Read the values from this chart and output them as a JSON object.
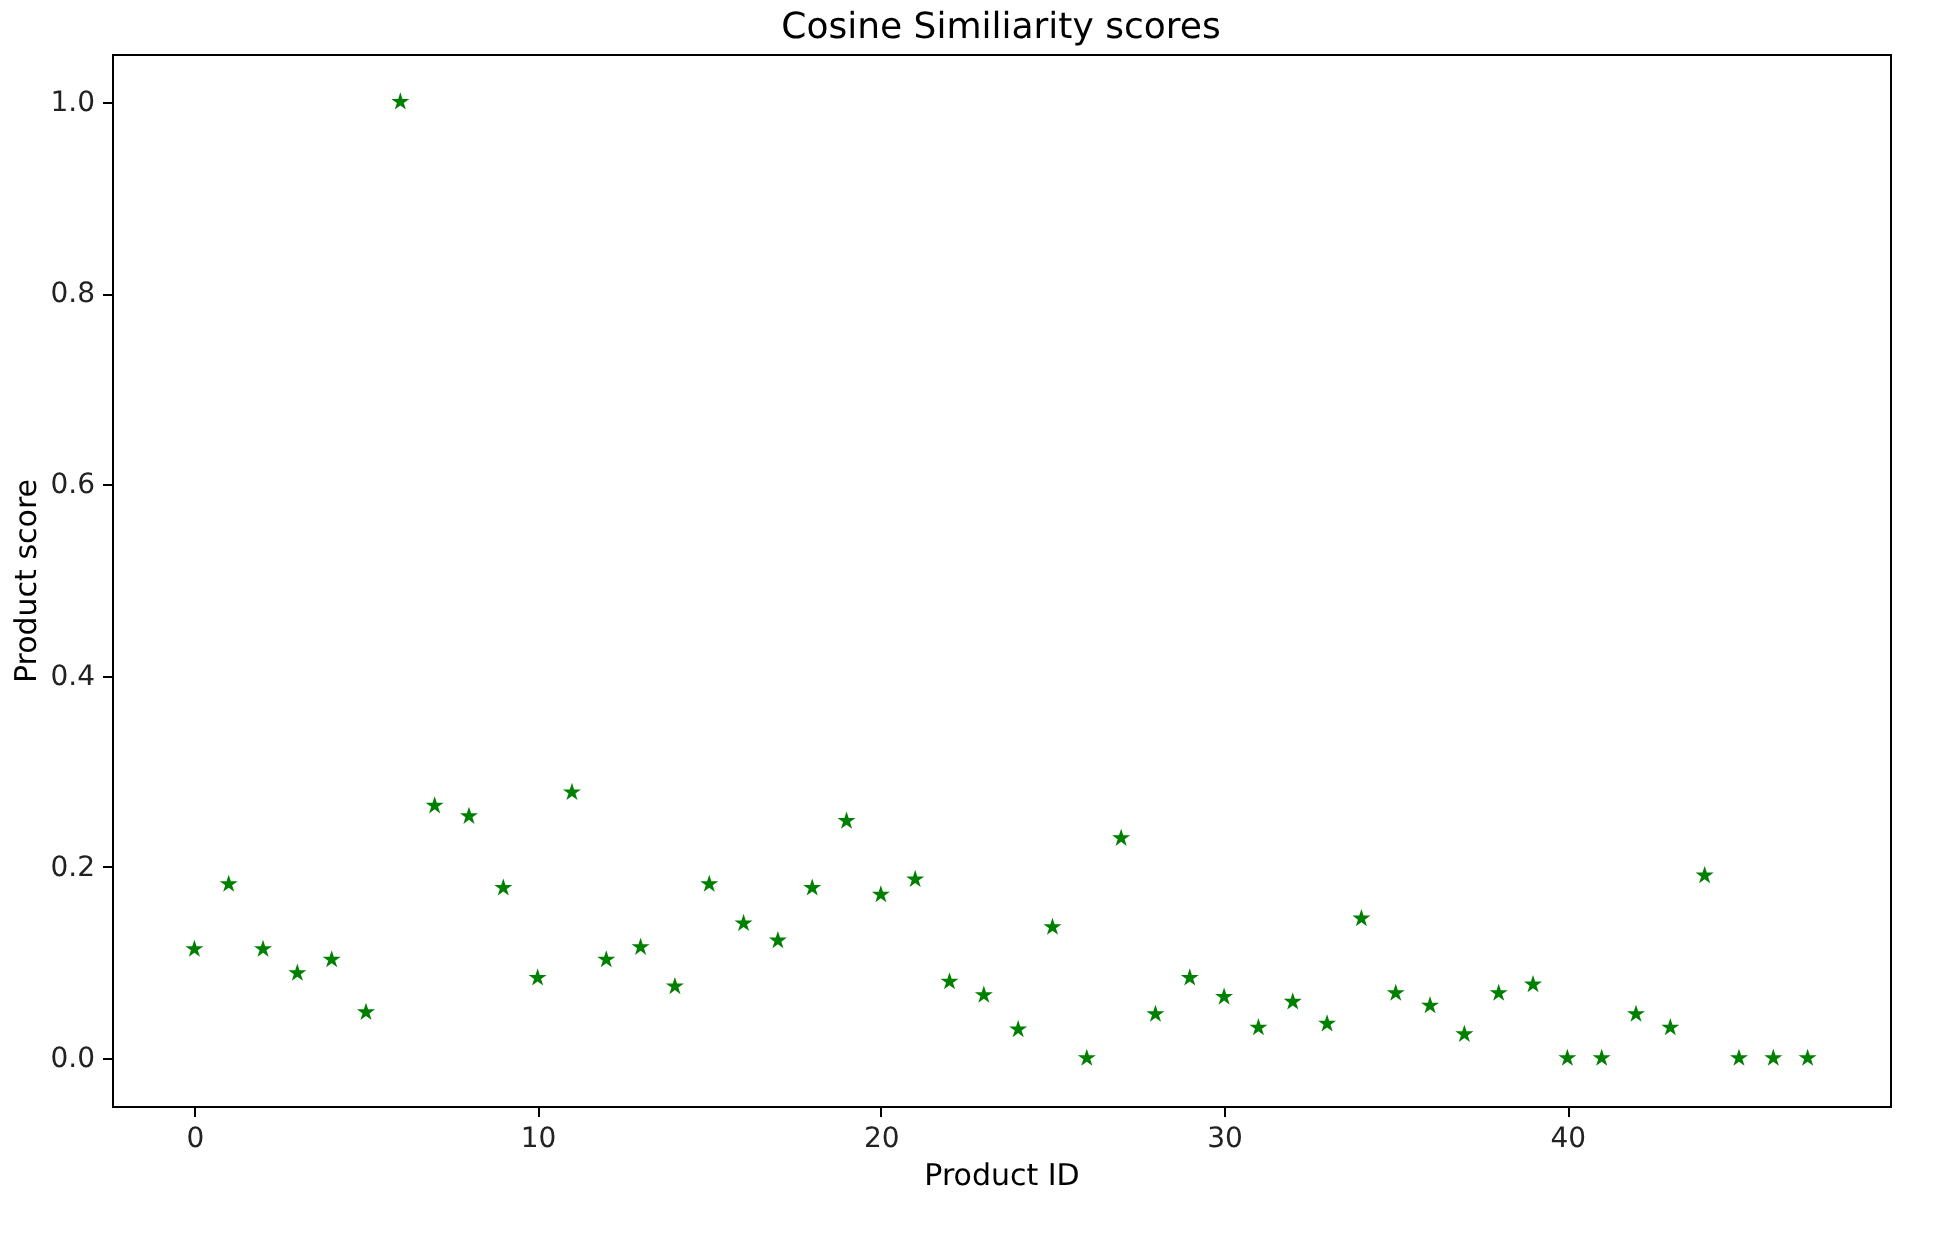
{
  "chart_data": {
    "type": "scatter",
    "title": "Cosine Similiarity scores",
    "xlabel": "Product ID",
    "ylabel": "Product score",
    "x": [
      0,
      1,
      2,
      3,
      4,
      5,
      6,
      7,
      8,
      9,
      10,
      11,
      12,
      13,
      14,
      15,
      16,
      17,
      18,
      19,
      20,
      21,
      22,
      23,
      24,
      25,
      26,
      27,
      28,
      29,
      30,
      31,
      32,
      33,
      34,
      35,
      36,
      37,
      38,
      39,
      40,
      41,
      42,
      43,
      44,
      45,
      46,
      47
    ],
    "series": [
      {
        "color": "#008000",
        "values": [
          0.114,
          0.182,
          0.114,
          0.089,
          0.103,
          0.048,
          1.0,
          0.264,
          0.253,
          0.178,
          0.084,
          0.278,
          0.103,
          0.116,
          0.075,
          0.182,
          0.141,
          0.123,
          0.178,
          0.248,
          0.171,
          0.187,
          0.08,
          0.066,
          0.03,
          0.137,
          0.0,
          0.23,
          0.046,
          0.084,
          0.064,
          0.032,
          0.059,
          0.036,
          0.146,
          0.068,
          0.055,
          0.025,
          0.068,
          0.077,
          0.0,
          0.0,
          0.046,
          0.032,
          0.191,
          0.0,
          0.0,
          0.0
        ]
      }
    ],
    "xlim": [
      -2.4,
      49.4
    ],
    "ylim": [
      -0.05,
      1.05
    ],
    "xticks": [
      0,
      10,
      20,
      30,
      40
    ],
    "yticks": [
      {
        "value": 0,
        "label": "0.0"
      },
      {
        "value": 0.2,
        "label": "0.2"
      },
      {
        "value": 0.4,
        "label": "0.4"
      },
      {
        "value": 0.6,
        "label": "0.6"
      },
      {
        "value": 0.8,
        "label": "0.8"
      },
      {
        "value": 1.0,
        "label": "1.0"
      }
    ],
    "marker": "star",
    "grid": false
  }
}
